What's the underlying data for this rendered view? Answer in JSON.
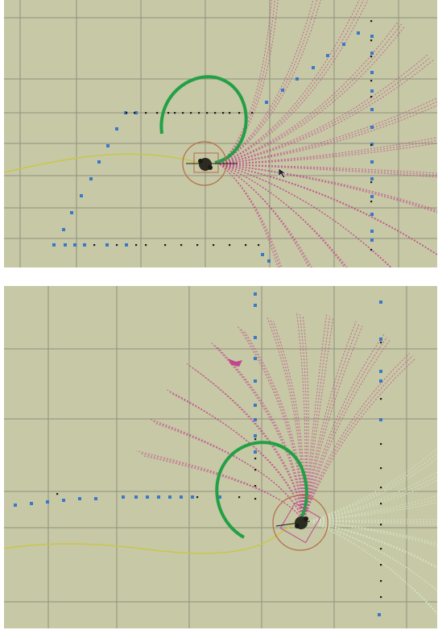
{
  "colors": {
    "background": "#c7c8a5",
    "grid": "#8f917e",
    "trajectory_arc": "#22a045",
    "path_line": "#c7c74a",
    "scan_dots_blue": "#3a78c8",
    "scan_dots_black": "#1a1a1a",
    "candidate_trajectories": "#c0478f",
    "footprint": "#b36c4a",
    "robot": "#2b2b22"
  },
  "icons": {
    "robot": "robot-icon",
    "cursor": "mouse-cursor-icon"
  },
  "panels": [
    {
      "name": "top-viewport"
    },
    {
      "name": "bottom-viewport"
    }
  ]
}
